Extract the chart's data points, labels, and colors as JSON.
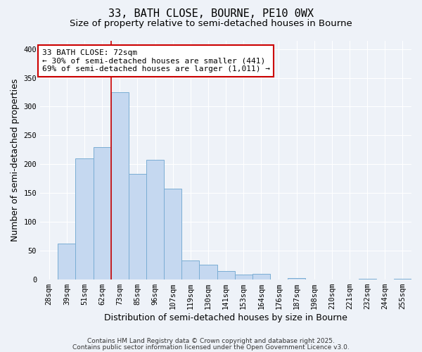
{
  "title": "33, BATH CLOSE, BOURNE, PE10 0WX",
  "subtitle": "Size of property relative to semi-detached houses in Bourne",
  "xlabel": "Distribution of semi-detached houses by size in Bourne",
  "ylabel": "Number of semi-detached properties",
  "bar_labels": [
    "28sqm",
    "39sqm",
    "51sqm",
    "62sqm",
    "73sqm",
    "85sqm",
    "96sqm",
    "107sqm",
    "119sqm",
    "130sqm",
    "141sqm",
    "153sqm",
    "164sqm",
    "176sqm",
    "187sqm",
    "198sqm",
    "210sqm",
    "221sqm",
    "232sqm",
    "244sqm",
    "255sqm"
  ],
  "bar_values": [
    0,
    62,
    210,
    230,
    325,
    183,
    207,
    157,
    32,
    25,
    14,
    8,
    9,
    0,
    2,
    0,
    0,
    0,
    1,
    0,
    1
  ],
  "bar_color": "#c5d8f0",
  "bar_edge_color": "#7aadd4",
  "annotation_title": "33 BATH CLOSE: 72sqm",
  "annotation_line1": "← 30% of semi-detached houses are smaller (441)",
  "annotation_line2": "69% of semi-detached houses are larger (1,011) →",
  "annotation_box_color": "#ffffff",
  "annotation_box_edge": "#cc0000",
  "vline_color": "#cc0000",
  "vline_x": 3.5,
  "ylim": [
    0,
    415
  ],
  "yticks": [
    0,
    50,
    100,
    150,
    200,
    250,
    300,
    350,
    400
  ],
  "footer1": "Contains HM Land Registry data © Crown copyright and database right 2025.",
  "footer2": "Contains public sector information licensed under the Open Government Licence v3.0.",
  "bg_color": "#eef2f8",
  "grid_color": "#ffffff",
  "title_fontsize": 11,
  "subtitle_fontsize": 9.5,
  "axis_label_fontsize": 9,
  "tick_fontsize": 7.5,
  "annotation_fontsize": 8,
  "footer_fontsize": 6.5
}
